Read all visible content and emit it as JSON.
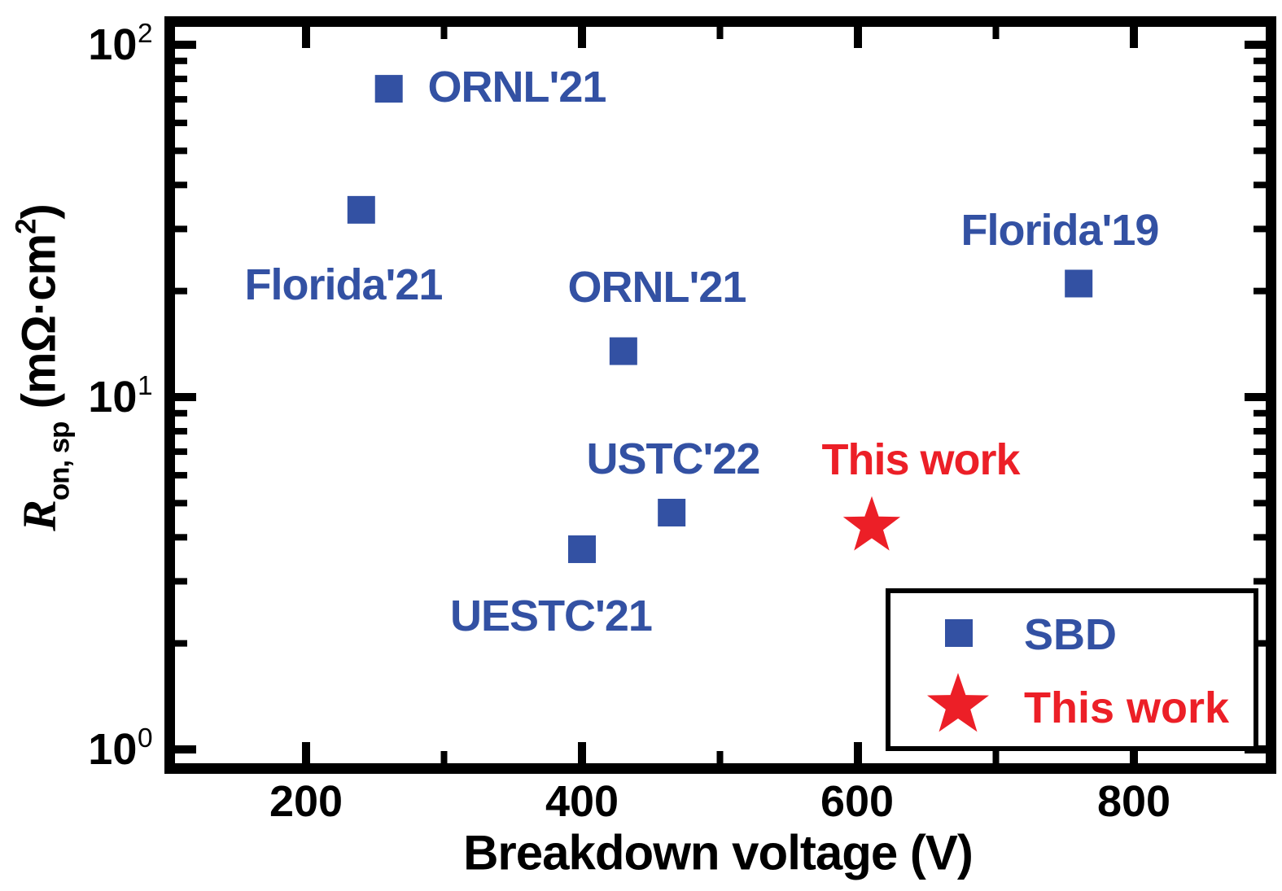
{
  "figure": {
    "background": "#ffffff",
    "colors": {
      "sbd_blue": "#3351a3",
      "work_red": "#ec1f27",
      "axis_black": "#000000"
    }
  },
  "chart_data": {
    "type": "scatter",
    "title": "",
    "xlabel": "Breakdown voltage (V)",
    "ylabel": {
      "symbol": "R",
      "subscript": "on, sp",
      "unit_prefix": "(mΩ·cm",
      "unit_superscript": "2",
      "unit_suffix": ")"
    },
    "x_axis": {
      "scale": "linear",
      "min": 100,
      "max": 900,
      "major_ticks": [
        200,
        400,
        600,
        800
      ],
      "minor_ticks": [
        300,
        500,
        700
      ]
    },
    "y_axis": {
      "scale": "log",
      "min": 0.85,
      "max": 120,
      "major_ticks": [
        1,
        10,
        100
      ],
      "tick_labels": [
        {
          "base": "10",
          "exp": "0"
        },
        {
          "base": "10",
          "exp": "1"
        },
        {
          "base": "10",
          "exp": "2"
        }
      ],
      "minor_ticks": [
        2,
        3,
        4,
        5,
        6,
        7,
        8,
        9,
        20,
        30,
        40,
        50,
        60,
        70,
        80,
        90
      ]
    },
    "grid": false,
    "series": [
      {
        "name": "SBD",
        "marker": "square",
        "color": "#3351a3",
        "points": [
          {
            "x": 260,
            "y": 75,
            "label": "ORNL'21"
          },
          {
            "x": 240,
            "y": 34,
            "label": "Florida'21"
          },
          {
            "x": 430,
            "y": 13.5,
            "label": "ORNL'21"
          },
          {
            "x": 760,
            "y": 21,
            "label": "Florida'19"
          },
          {
            "x": 465,
            "y": 4.7,
            "label": "USTC'22"
          },
          {
            "x": 400,
            "y": 3.7,
            "label": "UESTC'21"
          }
        ]
      },
      {
        "name": "This work",
        "marker": "star",
        "color": "#ec1f27",
        "points": [
          {
            "x": 610,
            "y": 4.3,
            "label": "This work"
          }
        ]
      }
    ],
    "legend": {
      "position": "lower right",
      "items": [
        {
          "label": "SBD",
          "marker": "square",
          "color": "#3351a3"
        },
        {
          "label": "This work",
          "marker": "star",
          "color": "#ec1f27"
        }
      ]
    }
  }
}
